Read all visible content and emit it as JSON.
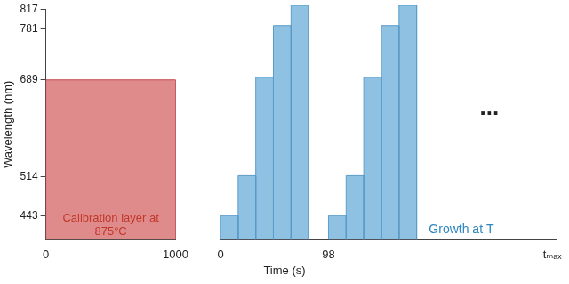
{
  "chart_data": [
    {
      "type": "bar",
      "ylabel": "Wavelength (nm)",
      "annotation": "Calibration layer at 875°C",
      "bars": [
        {
          "start": 0,
          "end": 1000,
          "value": 689
        }
      ],
      "color": "#e08b8b",
      "xlim": [
        0,
        1000
      ],
      "xticks": [
        0,
        1000
      ],
      "ylim": [
        400,
        817
      ],
      "yticks": [
        443,
        514,
        689,
        781,
        817
      ],
      "grid": false
    },
    {
      "type": "bar",
      "xlabel": "Time (s)",
      "annotation": "Growth at T",
      "continuation": "...",
      "bars": [
        {
          "start": 0,
          "end": 16,
          "value": 443
        },
        {
          "start": 16,
          "end": 32,
          "value": 514
        },
        {
          "start": 32,
          "end": 48,
          "value": 689
        },
        {
          "start": 48,
          "end": 64,
          "value": 781
        },
        {
          "start": 64,
          "end": 80,
          "value": 817
        },
        {
          "start": 98,
          "end": 114,
          "value": 443
        },
        {
          "start": 114,
          "end": 130,
          "value": 514
        },
        {
          "start": 130,
          "end": 146,
          "value": 689
        },
        {
          "start": 146,
          "end": 162,
          "value": 781
        },
        {
          "start": 162,
          "end": 178,
          "value": 817
        }
      ],
      "color": "#8fc1e3",
      "xlim": [
        0,
        305
      ],
      "xticks": [
        0,
        98,
        {
          "value": 301,
          "label": "tₘₐₓ"
        }
      ],
      "ylim": [
        400,
        817
      ],
      "tick_labels": "x",
      "grid": false
    }
  ]
}
